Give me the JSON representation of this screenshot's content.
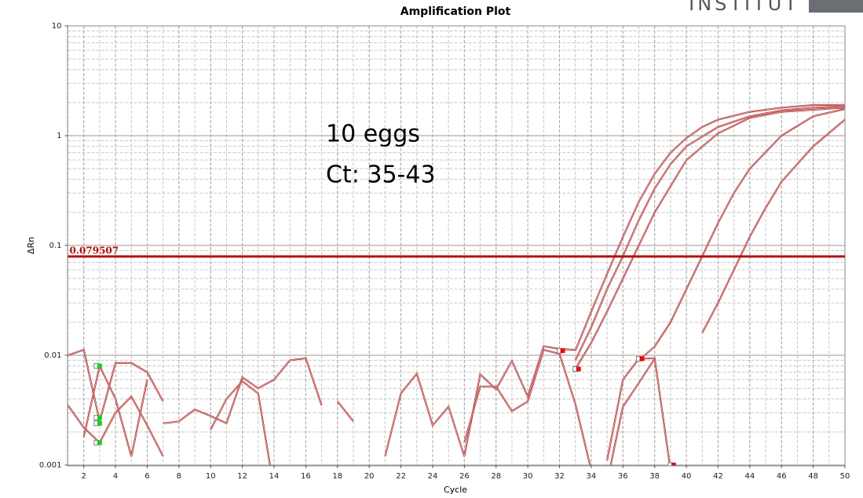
{
  "chart_data": {
    "type": "line",
    "title": "Amplification Plot",
    "logo_text": "INSTITUT",
    "xlabel": "Cycle",
    "ylabel": "ΔRn",
    "log_y": true,
    "grid": true,
    "xlim": [
      1,
      50
    ],
    "ylim": [
      0.001,
      10
    ],
    "xticks": [
      2,
      4,
      6,
      8,
      10,
      12,
      14,
      16,
      18,
      20,
      22,
      24,
      26,
      28,
      30,
      32,
      34,
      36,
      38,
      40,
      42,
      44,
      46,
      48,
      50
    ],
    "yticks": [
      0.001,
      0.01,
      0.1,
      1,
      10
    ],
    "threshold": {
      "value": 0.079507,
      "color": "#b01010"
    },
    "annotation": [
      "10 eggs",
      "Ct: 35-43"
    ],
    "series": [
      {
        "color": "#b03a3a",
        "x": [
          33,
          34,
          35,
          36,
          37,
          38,
          39,
          40,
          41,
          42,
          44,
          46,
          48,
          50
        ],
        "values": [
          0.011,
          0.025,
          0.055,
          0.12,
          0.25,
          0.45,
          0.7,
          0.95,
          1.2,
          1.4,
          1.65,
          1.8,
          1.9,
          1.9
        ]
      },
      {
        "color": "#b03a3a",
        "x": [
          33,
          34,
          35,
          36,
          37,
          38,
          39,
          40,
          42,
          44,
          46,
          48,
          50
        ],
        "values": [
          0.009,
          0.018,
          0.04,
          0.08,
          0.17,
          0.33,
          0.55,
          0.8,
          1.2,
          1.5,
          1.7,
          1.8,
          1.85
        ]
      },
      {
        "color": "#b03a3a",
        "x": [
          33,
          34,
          35,
          36,
          37,
          38,
          40,
          42,
          44,
          46,
          50
        ],
        "values": [
          0.0075,
          0.013,
          0.025,
          0.05,
          0.1,
          0.2,
          0.6,
          1.05,
          1.45,
          1.65,
          1.8
        ]
      },
      {
        "color": "#b03a3a",
        "x": [
          37,
          38,
          39,
          40,
          41,
          42,
          43,
          44,
          46,
          48,
          50
        ],
        "values": [
          0.009,
          0.012,
          0.02,
          0.04,
          0.08,
          0.16,
          0.3,
          0.5,
          1.0,
          1.5,
          1.75
        ]
      },
      {
        "color": "#b03a3a",
        "x": [
          41,
          42,
          43,
          44,
          45,
          46,
          48,
          50
        ],
        "values": [
          0.016,
          0.03,
          0.06,
          0.12,
          0.22,
          0.38,
          0.8,
          1.4
        ]
      },
      {
        "color": "#b03a3a",
        "x": [
          1,
          2,
          3,
          4,
          5,
          6,
          7
        ],
        "values": [
          0.01,
          0.0112,
          0.0025,
          0.0085,
          0.0085,
          0.007,
          0.0038
        ]
      },
      {
        "color": "#b03a3a",
        "x": [
          1,
          2,
          3,
          4,
          5,
          6,
          7
        ],
        "values": [
          0.0035,
          0.0022,
          0.0016,
          0.003,
          0.0042,
          0.0023,
          0.0012
        ]
      },
      {
        "color": "#b03a3a",
        "x": [
          2,
          3,
          4,
          5,
          6
        ],
        "values": [
          0.0018,
          0.008,
          0.004,
          0.0012,
          0.006
        ]
      },
      {
        "color": "#b03a3a",
        "x": [
          7,
          8,
          9,
          10,
          11,
          12,
          13,
          14,
          15,
          16,
          17
        ],
        "values": [
          0.0024,
          0.0025,
          0.0032,
          0.0028,
          0.0024,
          0.0063,
          0.005,
          0.006,
          0.009,
          0.0094,
          0.0035
        ]
      },
      {
        "color": "#b03a3a",
        "x": [
          10,
          11,
          12,
          13,
          14
        ],
        "values": [
          0.0021,
          0.004,
          0.0058,
          0.0045,
          0.0006
        ]
      },
      {
        "color": "#b03a3a",
        "x": [
          18,
          19,
          20,
          21,
          22,
          23,
          24,
          25,
          26,
          27,
          28,
          29,
          30,
          31,
          32,
          33
        ],
        "values": [
          0.0038,
          0.0025,
          null,
          0.0012,
          0.0045,
          0.0068,
          0.0023,
          0.0034,
          0.0012,
          0.0067,
          0.0049,
          0.0089,
          0.0042,
          0.0121,
          0.0114,
          0.0112
        ]
      },
      {
        "color": "#b03a3a",
        "x": [
          26,
          27,
          28,
          29,
          30,
          31,
          32,
          33,
          34
        ],
        "values": [
          0.0016,
          0.0052,
          0.0052,
          0.0031,
          0.0038,
          0.0112,
          0.0103,
          0.0036,
          0.0009
        ]
      },
      {
        "color": "#b03a3a",
        "x": [
          35,
          36,
          37,
          38,
          39
        ],
        "values": [
          0.0011,
          0.006,
          0.0093,
          0.0094,
          0.0009
        ]
      },
      {
        "color": "#b03a3a",
        "x": [
          35,
          36,
          37,
          38
        ],
        "values": [
          0.0007,
          0.0034,
          0.0056,
          0.0093
        ]
      }
    ],
    "markers": [
      {
        "x": 3,
        "y": 0.008,
        "color": "#22cc22"
      },
      {
        "x": 3,
        "y": 0.0027,
        "color": "#22cc22"
      },
      {
        "x": 3,
        "y": 0.0024,
        "color": "#22cc22"
      },
      {
        "x": 3,
        "y": 0.0016,
        "color": "#22cc22"
      },
      {
        "x": 32.2,
        "y": 0.011,
        "color": "#e01010"
      },
      {
        "x": 33.2,
        "y": 0.0075,
        "color": "#e01010"
      },
      {
        "x": 37.2,
        "y": 0.0093,
        "color": "#e01010"
      },
      {
        "x": 39.2,
        "y": 0.001,
        "color": "#e01010"
      }
    ]
  }
}
